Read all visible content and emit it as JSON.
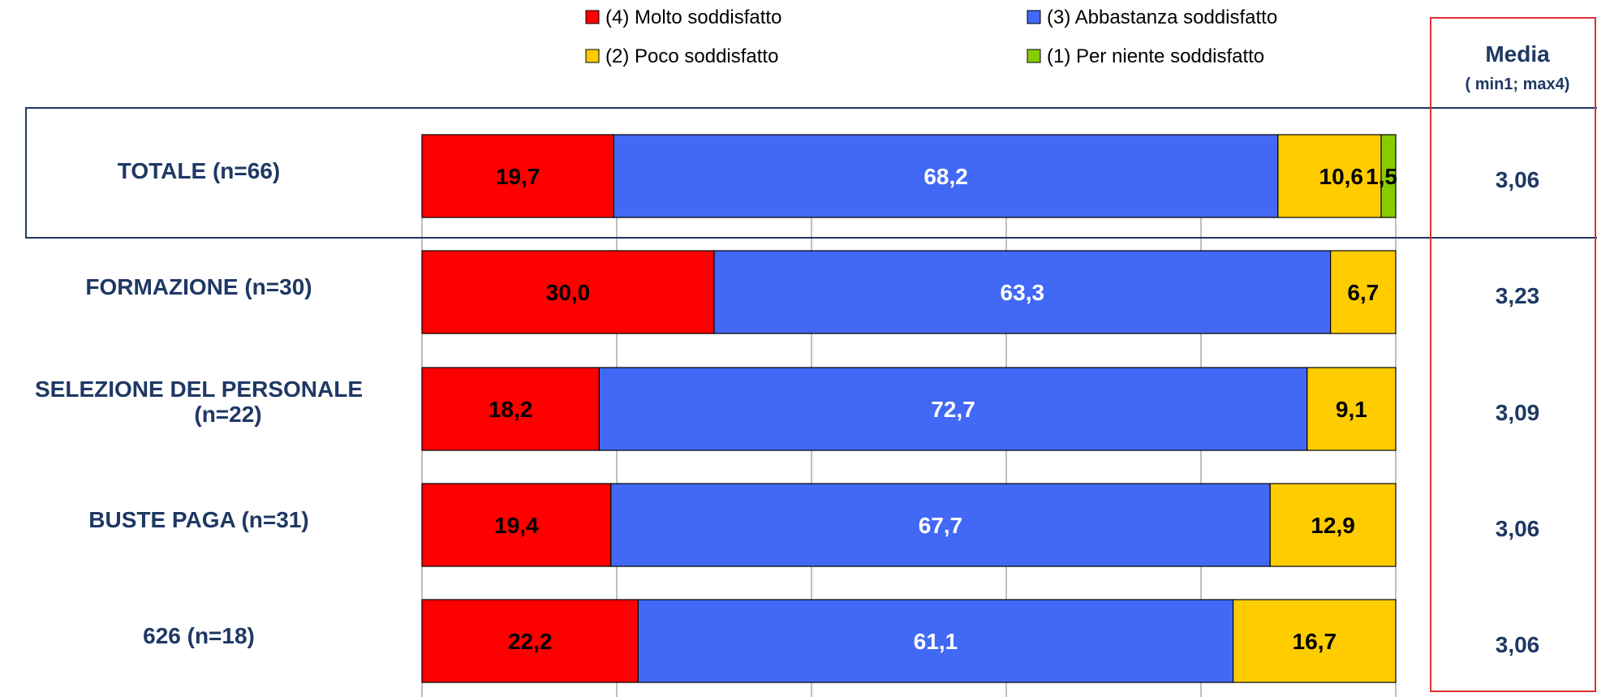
{
  "chart_data": {
    "type": "bar",
    "orientation": "horizontal",
    "stacked": true,
    "xlim": [
      0,
      100
    ],
    "grid": true,
    "legend_position": "top",
    "categories": [
      "TOTALE (n=66)",
      "FORMAZIONE (n=30)",
      "SELEZIONE DEL PERSONALE (n=22)",
      "BUSTE PAGA (n=31)",
      "626 (n=18)"
    ],
    "category_lines": [
      [
        "TOTALE (n=66)"
      ],
      [
        "FORMAZIONE (n=30)"
      ],
      [
        "SELEZIONE DEL PERSONALE",
        "(n=22)"
      ],
      [
        "BUSTE PAGA (n=31)"
      ],
      [
        "626 (n=18)"
      ]
    ],
    "series": [
      {
        "name": "(4) Molto soddisfatto",
        "color": "#ff0000",
        "label_color": "#000000",
        "values": [
          19.7,
          30.0,
          18.2,
          19.4,
          22.2
        ],
        "labels": [
          "19,7",
          "30,0",
          "18,2",
          "19,4",
          "22,2"
        ]
      },
      {
        "name": "(3) Abbastanza soddisfatto",
        "color": "#4169f5",
        "label_color": "#ffffff",
        "values": [
          68.2,
          63.3,
          72.7,
          67.7,
          61.1
        ],
        "labels": [
          "68,2",
          "63,3",
          "72,7",
          "67,7",
          "61,1"
        ]
      },
      {
        "name": "(2) Poco soddisfatto",
        "color": "#ffcc00",
        "label_color": "#000000",
        "values": [
          10.6,
          6.7,
          9.1,
          12.9,
          16.7
        ],
        "labels": [
          "10,6",
          "6,7",
          "9,1",
          "12,9",
          "16,7"
        ]
      },
      {
        "name": "(1) Per niente soddisfatto",
        "color": "#88cc00",
        "label_color": "#000000",
        "values": [
          1.5,
          0,
          0,
          0,
          0
        ],
        "labels": [
          "1,5",
          "",
          "",
          "",
          ""
        ]
      }
    ],
    "media": {
      "title": "Media",
      "subtitle": "( min1; max4)",
      "values": [
        "3,06",
        "3,23",
        "3,09",
        "3,06",
        "3,06"
      ],
      "box_color": "#e03030"
    },
    "highlight_box_color": "#1f3864"
  }
}
